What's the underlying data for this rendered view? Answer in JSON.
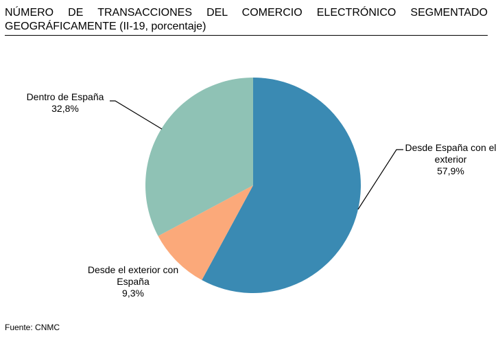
{
  "chart_data": {
    "type": "pie",
    "title": "NÚMERO DE TRANSACCIONES DEL COMERCIO ELECTRÓNICO SEGMENTADO GEOGRÁFICAMENTE (II-19, porcentaje)",
    "categories": [
      "Desde España con el exterior",
      "Desde el exterior con España",
      "Dentro de España"
    ],
    "values": [
      57.9,
      9.3,
      32.8
    ],
    "value_labels": [
      "57,9%",
      "9,3%",
      "32,8%"
    ],
    "colors": [
      "#3a8ab3",
      "#fba97a",
      "#8fc2b5"
    ],
    "source": "Fuente: CNMC"
  }
}
